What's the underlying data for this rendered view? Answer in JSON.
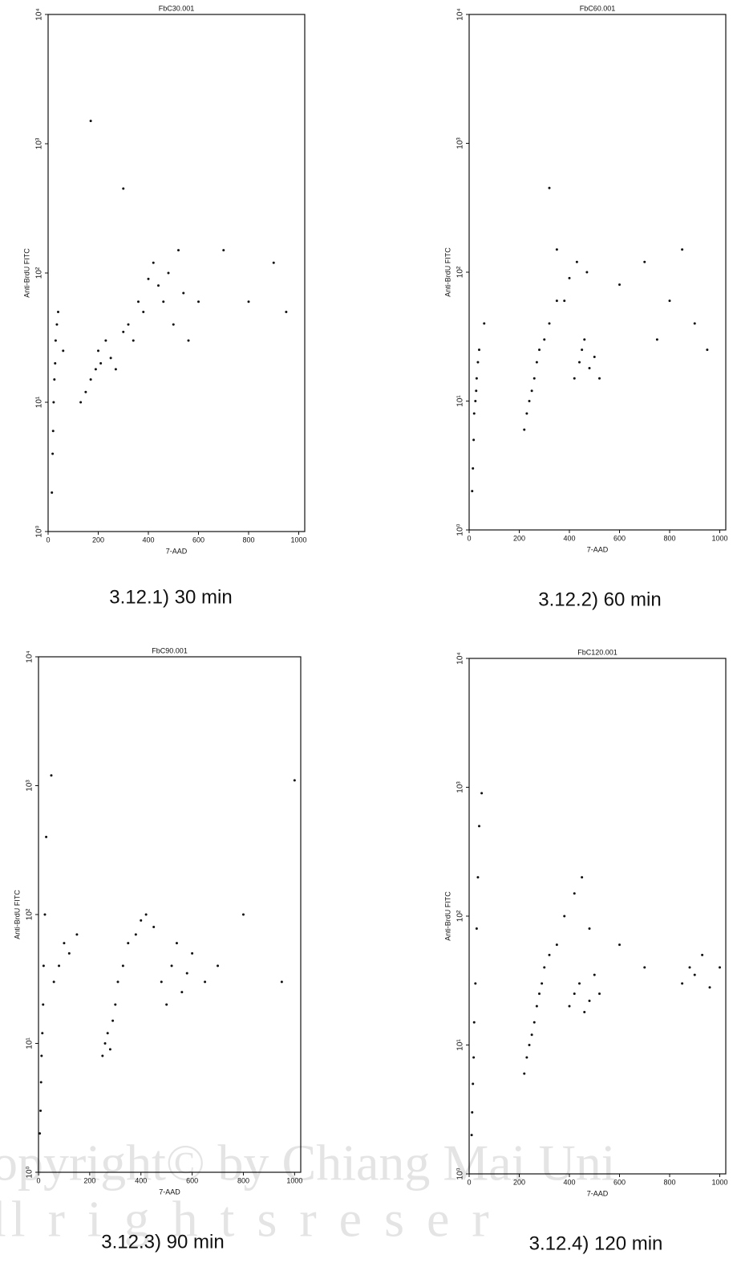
{
  "chart_data": [
    {
      "type": "scatter",
      "title": "FbC30.001",
      "x_label": "7-AAD",
      "y_label": "Anti-BrdU FITC",
      "caption": "3.12.1) 30 min",
      "xlim": [
        0,
        1024
      ],
      "xticks": [
        0,
        200,
        400,
        600,
        800,
        1000
      ],
      "ylim": [
        1,
        10000
      ],
      "log_y": true,
      "yticks": [
        {
          "value": 1,
          "label": "10⁰"
        },
        {
          "value": 10,
          "label": "10¹"
        },
        {
          "value": 100,
          "label": "10²"
        },
        {
          "value": 1000,
          "label": "10³"
        },
        {
          "value": 10000,
          "label": "10⁴"
        }
      ],
      "color": "#111111",
      "x": [
        15,
        18,
        20,
        22,
        25,
        28,
        30,
        35,
        40,
        60,
        130,
        150,
        170,
        190,
        200,
        210,
        230,
        250,
        270,
        300,
        320,
        340,
        360,
        380,
        400,
        420,
        440,
        460,
        480,
        500,
        520,
        540,
        560,
        600,
        700,
        800,
        900,
        950,
        300,
        170
      ],
      "y": [
        2,
        4,
        6,
        10,
        15,
        20,
        30,
        40,
        50,
        25,
        10,
        12,
        15,
        18,
        25,
        20,
        30,
        22,
        18,
        35,
        40,
        30,
        60,
        50,
        90,
        120,
        80,
        60,
        100,
        40,
        150,
        70,
        30,
        60,
        150,
        60,
        120,
        50,
        450,
        1500
      ]
    },
    {
      "type": "scatter",
      "title": "FbC60.001",
      "x_label": "7-AAD",
      "y_label": "Anti-BrdU FITC",
      "caption": "3.12.2) 60 min",
      "xlim": [
        0,
        1024
      ],
      "xticks": [
        0,
        200,
        400,
        600,
        800,
        1000
      ],
      "ylim": [
        1,
        10000
      ],
      "log_y": true,
      "yticks": [
        {
          "value": 1,
          "label": "10⁰"
        },
        {
          "value": 10,
          "label": "10¹"
        },
        {
          "value": 100,
          "label": "10²"
        },
        {
          "value": 1000,
          "label": "10³"
        },
        {
          "value": 10000,
          "label": "10⁴"
        }
      ],
      "color": "#111111",
      "x": [
        12,
        15,
        18,
        20,
        25,
        28,
        30,
        35,
        40,
        60,
        220,
        230,
        240,
        250,
        260,
        270,
        280,
        300,
        320,
        350,
        420,
        440,
        450,
        460,
        480,
        500,
        520,
        380,
        400,
        430,
        470,
        350,
        600,
        700,
        750,
        800,
        850,
        900,
        950,
        320
      ],
      "y": [
        2,
        3,
        5,
        8,
        10,
        12,
        15,
        20,
        25,
        40,
        6,
        8,
        10,
        12,
        15,
        20,
        25,
        30,
        40,
        60,
        15,
        20,
        25,
        30,
        18,
        22,
        15,
        60,
        90,
        120,
        100,
        150,
        80,
        120,
        30,
        60,
        150,
        40,
        25,
        450
      ]
    },
    {
      "type": "scatter",
      "title": "FbC90.001",
      "x_label": "7-AAD",
      "y_label": "Anti-BrdU FITC",
      "caption": "3.12.3) 90 min",
      "xlim": [
        0,
        1024
      ],
      "xticks": [
        0,
        200,
        400,
        600,
        800,
        1000
      ],
      "ylim": [
        1,
        10000
      ],
      "log_y": true,
      "yticks": [
        {
          "value": 1,
          "label": "10⁰"
        },
        {
          "value": 10,
          "label": "10¹"
        },
        {
          "value": 100,
          "label": "10²"
        },
        {
          "value": 1000,
          "label": "10³"
        },
        {
          "value": 10000,
          "label": "10⁴"
        }
      ],
      "color": "#111111",
      "x": [
        5,
        8,
        10,
        12,
        15,
        18,
        20,
        25,
        30,
        50,
        60,
        80,
        100,
        120,
        150,
        250,
        260,
        270,
        280,
        290,
        300,
        310,
        330,
        350,
        380,
        400,
        420,
        450,
        480,
        500,
        520,
        540,
        560,
        580,
        600,
        650,
        700,
        800,
        950,
        1000
      ],
      "y": [
        2,
        3,
        5,
        8,
        12,
        20,
        40,
        100,
        400,
        1200,
        30,
        40,
        60,
        50,
        70,
        8,
        10,
        12,
        9,
        15,
        20,
        30,
        40,
        60,
        70,
        90,
        100,
        80,
        30,
        20,
        40,
        60,
        25,
        35,
        50,
        30,
        40,
        100,
        30,
        1100
      ]
    },
    {
      "type": "scatter",
      "title": "FbC120.001",
      "x_label": "7-AAD",
      "y_label": "Anti-BrdU FITC",
      "caption": "3.12.4) 120 min",
      "xlim": [
        0,
        1024
      ],
      "xticks": [
        0,
        200,
        400,
        600,
        800,
        1000
      ],
      "ylim": [
        1,
        10000
      ],
      "log_y": true,
      "yticks": [
        {
          "value": 1,
          "label": "10⁰"
        },
        {
          "value": 10,
          "label": "10¹"
        },
        {
          "value": 100,
          "label": "10²"
        },
        {
          "value": 1000,
          "label": "10³"
        },
        {
          "value": 10000,
          "label": "10⁴"
        }
      ],
      "color": "#111111",
      "x": [
        10,
        12,
        15,
        18,
        20,
        25,
        30,
        35,
        40,
        50,
        220,
        230,
        240,
        250,
        260,
        270,
        280,
        290,
        300,
        320,
        400,
        420,
        440,
        460,
        480,
        500,
        520,
        350,
        380,
        420,
        450,
        480,
        600,
        700,
        850,
        880,
        900,
        930,
        960,
        1000
      ],
      "y": [
        2,
        3,
        5,
        8,
        15,
        30,
        80,
        200,
        500,
        900,
        6,
        8,
        10,
        12,
        15,
        20,
        25,
        30,
        40,
        50,
        20,
        25,
        30,
        18,
        22,
        35,
        25,
        60,
        100,
        150,
        200,
        80,
        60,
        40,
        30,
        40,
        35,
        50,
        28,
        40
      ]
    }
  ],
  "watermark": [
    "opyright©  by Chiang Mai Uni",
    "ll  r i g h t s   r e s e r"
  ]
}
